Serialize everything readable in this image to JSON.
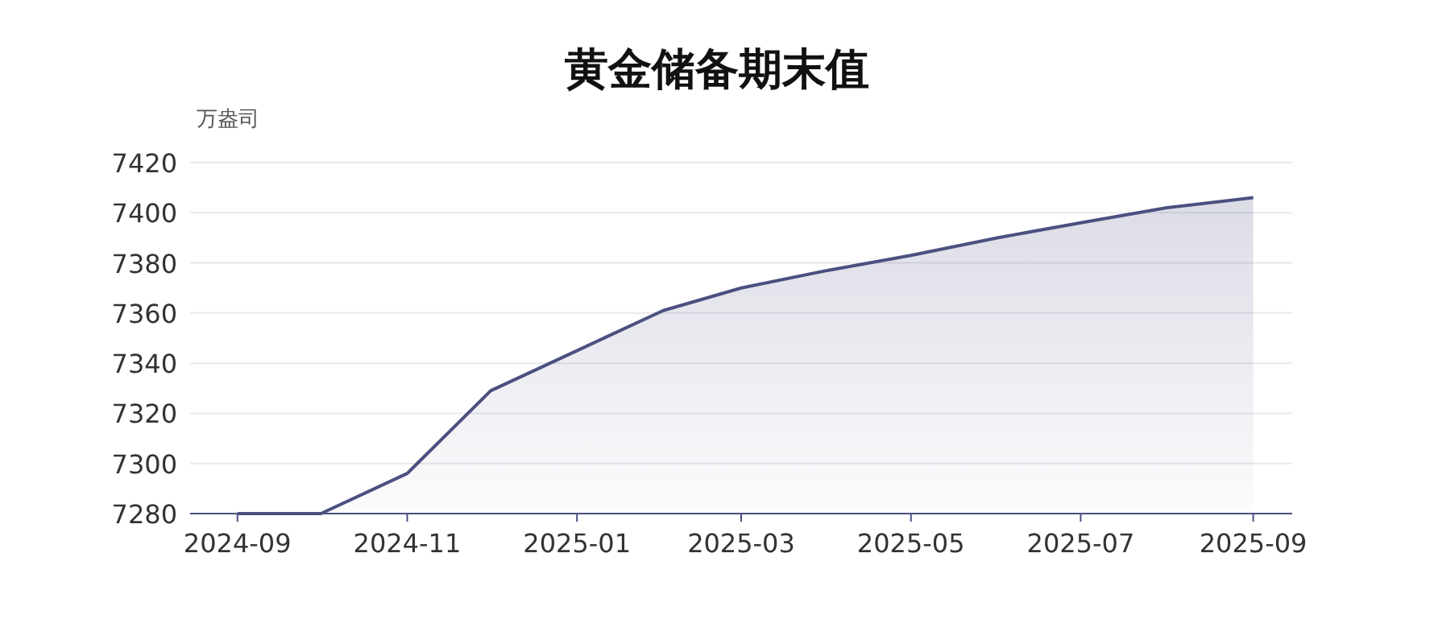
{
  "chart_data": {
    "type": "area",
    "title": "黄金储备期末值",
    "ylabel": "万盎司",
    "x": [
      "2024-09",
      "2024-10",
      "2024-11",
      "2024-12",
      "2025-01",
      "2025-02",
      "2025-03",
      "2025-04",
      "2025-05",
      "2025-06",
      "2025-07",
      "2025-08",
      "2025-09"
    ],
    "values": [
      7280,
      7280,
      7296,
      7329,
      7345,
      7361,
      7370,
      7377,
      7383,
      7390,
      7396,
      7402,
      7406
    ],
    "color": "#4a5080",
    "xlim": [
      "2024-08-15",
      "2025-09-15"
    ],
    "xticks": [
      "2024-09",
      "2024-11",
      "2025-01",
      "2025-03",
      "2025-05",
      "2025-07",
      "2025-09"
    ],
    "ylim": [
      7280,
      7420
    ],
    "yticks": [
      7280,
      7300,
      7320,
      7340,
      7360,
      7380,
      7400,
      7420
    ],
    "grid": "y",
    "marker": "none",
    "line_style": "solid"
  }
}
